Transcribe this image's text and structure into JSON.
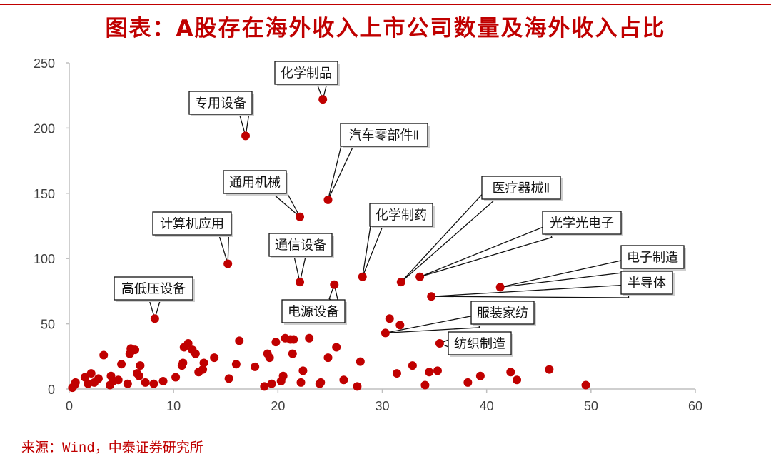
{
  "title": "图表：A股存在海外收入上市公司数量及海外收入占比",
  "source": "来源：Wind，中泰证券研究所",
  "colors": {
    "accent": "#c00000",
    "point": "#c00000"
  },
  "chart_data": {
    "type": "scatter",
    "xlim": [
      0,
      60
    ],
    "ylim": [
      0,
      250
    ],
    "xticks": [
      0,
      10,
      20,
      30,
      40,
      50,
      60
    ],
    "yticks": [
      0,
      50,
      100,
      150,
      200,
      250
    ],
    "grid": false,
    "points": [
      [
        0.3,
        1
      ],
      [
        0.5,
        3
      ],
      [
        0.6,
        5
      ],
      [
        1.5,
        9
      ],
      [
        1.8,
        4
      ],
      [
        2.1,
        12
      ],
      [
        2.4,
        5
      ],
      [
        2.8,
        8
      ],
      [
        3.3,
        26
      ],
      [
        3.9,
        3
      ],
      [
        4.0,
        10
      ],
      [
        4.2,
        6
      ],
      [
        4.7,
        7
      ],
      [
        5.0,
        19
      ],
      [
        5.6,
        4
      ],
      [
        5.8,
        27
      ],
      [
        5.9,
        31
      ],
      [
        6.3,
        30
      ],
      [
        6.5,
        12
      ],
      [
        6.7,
        10
      ],
      [
        6.8,
        18
      ],
      [
        7.3,
        5
      ],
      [
        8.1,
        4
      ],
      [
        9.0,
        6
      ],
      [
        10.2,
        9
      ],
      [
        10.8,
        18
      ],
      [
        10.9,
        20
      ],
      [
        11.0,
        32
      ],
      [
        11.4,
        35
      ],
      [
        11.8,
        30
      ],
      [
        12.1,
        27
      ],
      [
        12.4,
        13
      ],
      [
        12.8,
        15
      ],
      [
        12.9,
        20
      ],
      [
        13.9,
        24
      ],
      [
        15.3,
        8
      ],
      [
        16.0,
        19
      ],
      [
        16.3,
        37
      ],
      [
        17.8,
        17
      ],
      [
        18.7,
        2
      ],
      [
        19.0,
        27
      ],
      [
        19.2,
        24
      ],
      [
        19.4,
        4
      ],
      [
        19.8,
        36
      ],
      [
        20.3,
        6
      ],
      [
        20.5,
        10
      ],
      [
        20.7,
        39
      ],
      [
        21.2,
        38
      ],
      [
        21.4,
        27
      ],
      [
        21.5,
        38
      ],
      [
        22.2,
        5
      ],
      [
        22.4,
        14
      ],
      [
        23.0,
        39
      ],
      [
        24.0,
        4
      ],
      [
        24.1,
        5
      ],
      [
        24.8,
        24
      ],
      [
        25.6,
        32
      ],
      [
        26.3,
        7
      ],
      [
        27.6,
        2
      ],
      [
        27.9,
        21
      ],
      [
        30.7,
        54
      ],
      [
        31.4,
        12
      ],
      [
        31.7,
        49
      ],
      [
        32.9,
        18
      ],
      [
        34.1,
        3
      ],
      [
        34.5,
        13
      ],
      [
        35.3,
        14
      ],
      [
        38.2,
        5
      ],
      [
        39.4,
        10
      ],
      [
        42.3,
        13
      ],
      [
        42.9,
        7
      ],
      [
        46.0,
        15
      ],
      [
        49.5,
        3
      ]
    ],
    "annotations": [
      {
        "label": "化学制品",
        "x": 24.3,
        "y": 222
      },
      {
        "label": "专用设备",
        "x": 16.9,
        "y": 194
      },
      {
        "label": "汽车零部件Ⅱ",
        "x": 24.8,
        "y": 145
      },
      {
        "label": "通用机械",
        "x": 22.1,
        "y": 132
      },
      {
        "label": "计算机应用",
        "x": 15.2,
        "y": 96
      },
      {
        "label": "通信设备",
        "x": 22.1,
        "y": 82
      },
      {
        "label": "化学制药",
        "x": 28.1,
        "y": 86
      },
      {
        "label": "医疗器械Ⅱ",
        "x": 31.8,
        "y": 82
      },
      {
        "label": "光学光电子",
        "x": 33.6,
        "y": 86
      },
      {
        "label": "高低压设备",
        "x": 8.2,
        "y": 54
      },
      {
        "label": "电源设备",
        "x": 25.4,
        "y": 80
      },
      {
        "label": "电子制造",
        "x": 41.3,
        "y": 78
      },
      {
        "label": "半导体",
        "x": 34.7,
        "y": 71
      },
      {
        "label": "服装家纺",
        "x": 30.3,
        "y": 43
      },
      {
        "label": "纺织制造",
        "x": 35.5,
        "y": 35
      }
    ]
  }
}
